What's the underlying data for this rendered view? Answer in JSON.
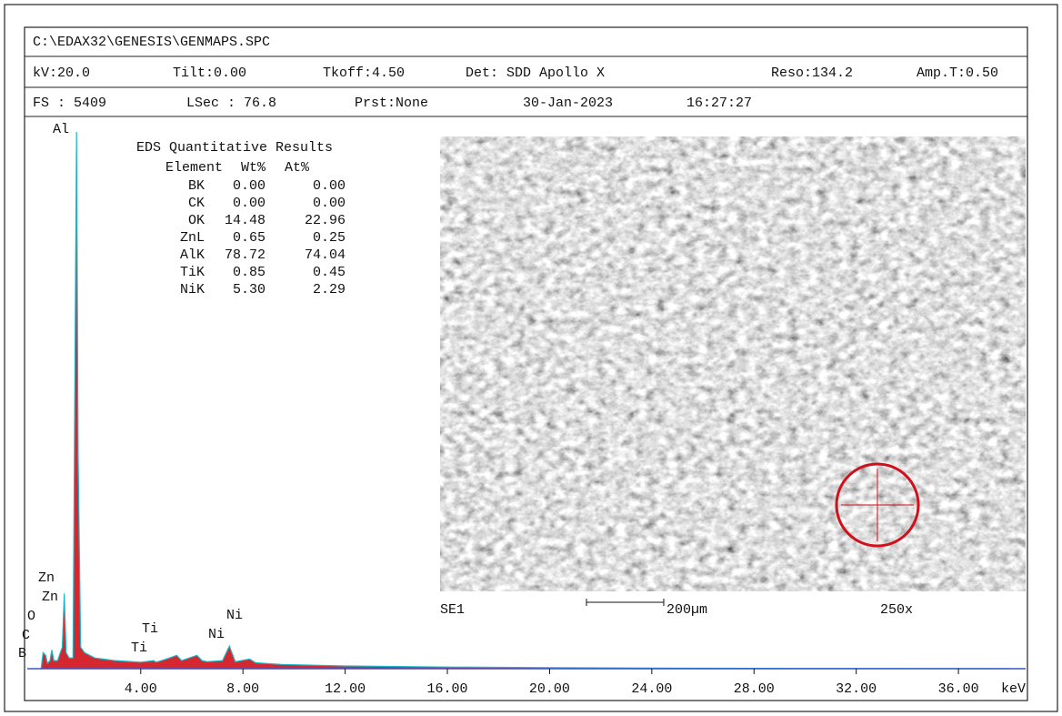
{
  "header": {
    "path": "C:\\EDAX32\\GENESIS\\GENMAPS.SPC",
    "row1": [
      "kV:20.0",
      "Tilt:0.00",
      "Tkoff:4.50",
      "Det: SDD Apollo X",
      "Reso:134.2",
      "Amp.T:0.50"
    ],
    "row2": [
      "FS : 5409",
      "LSec : 76.8",
      "Prst:None",
      "30-Jan-2023",
      "16:27:27"
    ]
  },
  "results": {
    "title": "EDS Quantitative Results",
    "columns": [
      "Element",
      "Wt%",
      "At%"
    ],
    "rows": [
      [
        "BK",
        "0.00",
        "0.00"
      ],
      [
        "CK",
        "0.00",
        "0.00"
      ],
      [
        "OK",
        "14.48",
        "22.96"
      ],
      [
        "ZnL",
        "0.65",
        "0.25"
      ],
      [
        "AlK",
        "78.72",
        "74.04"
      ],
      [
        "TiK",
        "0.85",
        "0.45"
      ],
      [
        "NiK",
        "5.30",
        "2.29"
      ]
    ]
  },
  "sem_image": {
    "detector": "SE1",
    "scale": "200µm",
    "magnification": "250x"
  },
  "chart_data": {
    "type": "area",
    "color": "#d0101a",
    "x": [
      0.1,
      0.18,
      0.28,
      0.35,
      0.45,
      0.52,
      0.6,
      0.75,
      0.85,
      0.93,
      1.01,
      1.08,
      1.2,
      1.35,
      1.43,
      1.49,
      1.55,
      1.65,
      1.8,
      2.2,
      3.0,
      4.0,
      4.51,
      4.6,
      5.0,
      5.41,
      5.6,
      5.9,
      6.2,
      6.4,
      6.6,
      7.2,
      7.47,
      7.7,
      8.26,
      8.5,
      9.5,
      12,
      16,
      20,
      24,
      30,
      38
    ],
    "values": [
      0,
      3,
      2.5,
      1,
      1.5,
      3.5,
      1.5,
      1.5,
      3,
      4,
      14,
      3,
      2,
      2,
      60,
      100,
      40,
      4,
      3,
      2,
      1.5,
      1.2,
      1.5,
      1.2,
      1.8,
      2.5,
      1.5,
      2,
      2.5,
      1.5,
      1.3,
      1.5,
      4.2,
      1.3,
      1.8,
      1.1,
      0.8,
      0.5,
      0.3,
      0.2,
      0.1,
      0.05,
      0
    ],
    "xlim": [
      -0.44,
      38.63
    ],
    "ylim": [
      0,
      100
    ],
    "xticks": [
      {
        "value": 4,
        "label": "4.00"
      },
      {
        "value": 8,
        "label": "8.00"
      },
      {
        "value": 12,
        "label": "12.00"
      },
      {
        "value": 16,
        "label": "16.00"
      },
      {
        "value": 20,
        "label": "20.00"
      },
      {
        "value": 24,
        "label": "24.00"
      },
      {
        "value": 28,
        "label": "28.00"
      },
      {
        "value": 32,
        "label": "32.00"
      },
      {
        "value": 36,
        "label": "36.00"
      }
    ],
    "x_unit": "keV",
    "peak_labels": [
      "Al",
      "Zn",
      "Zn",
      "O",
      "C",
      "B",
      "Ti",
      "Ti",
      "Ni",
      "Ni"
    ]
  }
}
